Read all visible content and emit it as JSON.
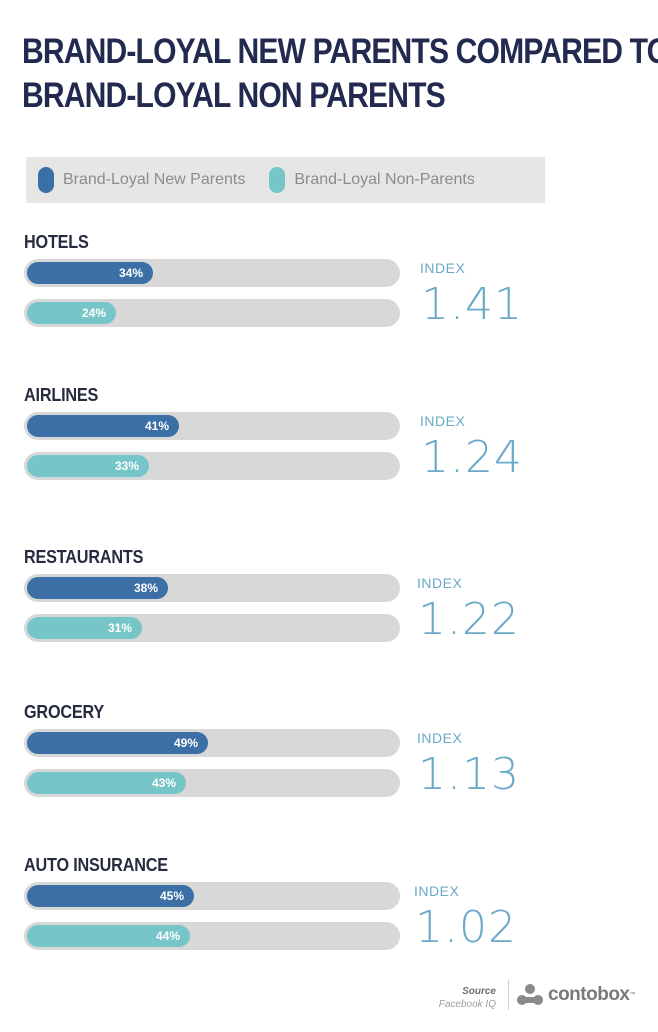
{
  "title_lines": [
    "BRAND-LOYAL NEW PARENTS COMPARED TO",
    "BRAND-LOYAL NON PARENTS"
  ],
  "colors": {
    "new_parents": "#3b6fa5",
    "non_parents": "#76c6c9",
    "track": "#d8d8d8",
    "index": "#6aa9c8"
  },
  "legend": {
    "new_parents": "Brand-Loyal New Parents",
    "non_parents": "Brand-Loyal Non-Parents"
  },
  "chart_data": {
    "type": "bar",
    "orientation": "horizontal",
    "categories": [
      "HOTELS",
      "AIRLINES",
      "RESTAURANTS",
      "GROCERY",
      "AUTO INSURANCE"
    ],
    "series": [
      {
        "name": "Brand-Loyal New Parents",
        "values": [
          34,
          41,
          38,
          49,
          45
        ],
        "labels": [
          "34%",
          "41%",
          "38%",
          "49%",
          "45%"
        ]
      },
      {
        "name": "Brand-Loyal Non-Parents",
        "values": [
          24,
          33,
          31,
          43,
          44
        ],
        "labels": [
          "24%",
          "33%",
          "31%",
          "43%",
          "44%"
        ]
      }
    ],
    "index_label": "INDEX",
    "index_values": [
      "1.41",
      "1.24",
      "1.22",
      "1.13",
      "1.02"
    ],
    "xlim": [
      0,
      100
    ]
  },
  "footer": {
    "source_label": "Source",
    "source_value": "Facebook IQ",
    "brand": "contobox",
    "brand_mark": "™"
  }
}
